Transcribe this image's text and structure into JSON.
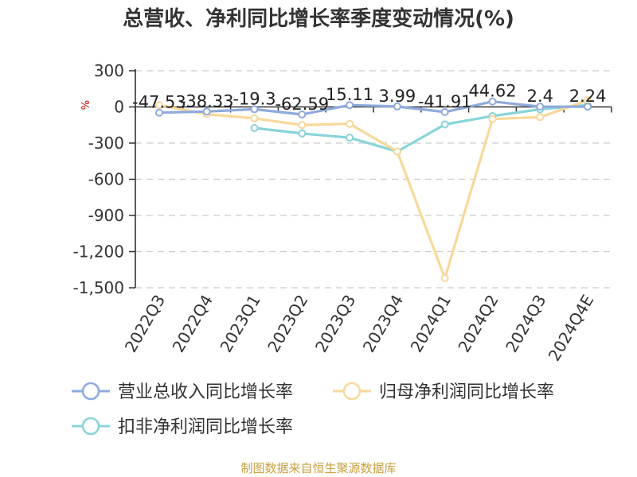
{
  "chart_data": {
    "type": "line",
    "title": "总营收、净利同比增长率季度变动情况(%)",
    "ylabel": "%",
    "categories": [
      "2022Q3",
      "2022Q4",
      "2023Q1",
      "2023Q2",
      "2023Q3",
      "2023Q4",
      "2024Q1",
      "2024Q2",
      "2024Q3",
      "2024Q4E"
    ],
    "ylim": [
      -1500,
      300
    ],
    "yticks": [
      300,
      0,
      -300,
      -600,
      -900,
      -1200,
      -1500
    ],
    "ytick_labels": [
      "300",
      "0",
      "-300",
      "-600",
      "-900",
      "-1,200",
      "-1,500"
    ],
    "grid": true,
    "legend_position": "bottom",
    "series": [
      {
        "name": "营业总收入同比增长率",
        "color": "#8faadc",
        "values": [
          -47.53,
          -38.33,
          -19.3,
          -62.59,
          15.11,
          3.99,
          -41.91,
          44.62,
          2.4,
          2.24
        ],
        "labels": [
          "-47.53",
          "-38.33",
          "-19.3",
          "-62.59",
          "15.11",
          "3.99",
          "-41.91",
          "44.62",
          "2.4",
          "2.24"
        ]
      },
      {
        "name": "归母净利润同比增长率",
        "color": "#f8d89a",
        "values": [
          15,
          -60,
          -95,
          -150,
          -140,
          -370,
          -1420,
          -100,
          -85,
          55
        ]
      },
      {
        "name": "扣非净利润同比增长率",
        "color": "#88d4d8",
        "values": [
          null,
          null,
          -175,
          -220,
          -255,
          -370,
          -145,
          -75,
          -20,
          15
        ]
      }
    ]
  },
  "source": "制图数据来自恒生聚源数据库"
}
